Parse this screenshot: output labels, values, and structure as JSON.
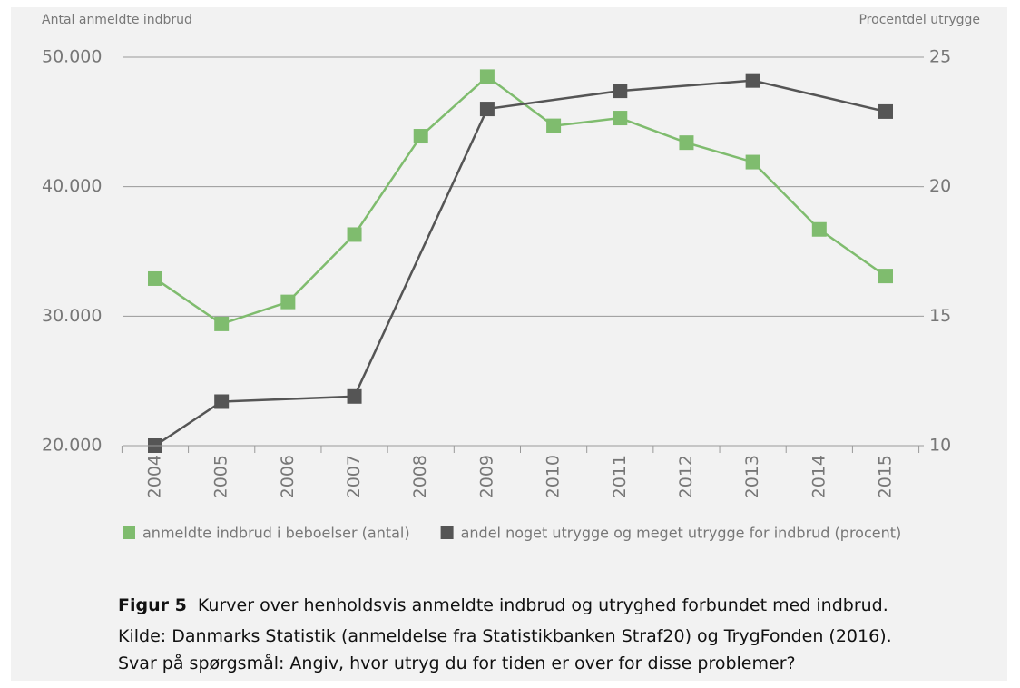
{
  "chart_data": {
    "type": "line",
    "y_axis_label": "Antal anmeldte indbrud",
    "y2_axis_label": "Procentdel utrygge",
    "categories": [
      "2004",
      "2005",
      "2006",
      "2007",
      "2008",
      "2009",
      "2010",
      "2011",
      "2012",
      "2013",
      "2014",
      "2015"
    ],
    "series": [
      {
        "name": "anmeldte indbrud i beboelser (antal)",
        "color": "#7fbc6e",
        "values": [
          32900,
          29400,
          31100,
          36300,
          43900,
          48500,
          44700,
          45300,
          43400,
          41900,
          36700,
          33100
        ]
      },
      {
        "name": "andel noget utrygge og meget utrygge for indbrud (procent)",
        "color": "#555555",
        "axis": "y2",
        "x": [
          "2004",
          "2005",
          "2007",
          "2009",
          "2011",
          "2013",
          "2015"
        ],
        "values": [
          10,
          11.7,
          11.9,
          23.0,
          23.7,
          24.1,
          22.9
        ]
      }
    ],
    "ylim": [
      20000,
      50000
    ],
    "yticks": [
      {
        "value": 20000,
        "label": "20.000"
      },
      {
        "value": 30000,
        "label": "30.000"
      },
      {
        "value": 40000,
        "label": "40.000"
      },
      {
        "value": 50000,
        "label": "50.000"
      }
    ],
    "y2lim": [
      10,
      25
    ],
    "y2ticks": [
      10,
      15,
      20,
      25
    ],
    "grid": true
  },
  "caption": {
    "figure_label": "Figur 5",
    "title": "Kurver over henholdsvis anmeldte indbrud og utryghed forbundet med indbrud.",
    "source": "Kilde: Danmarks Statistik (anmeldelse fra Statistikbanken Straf20) og TrygFonden (2016).",
    "question": "Svar på spørgsmål: Angiv, hvor utryg du for tiden er over for disse problemer?"
  }
}
